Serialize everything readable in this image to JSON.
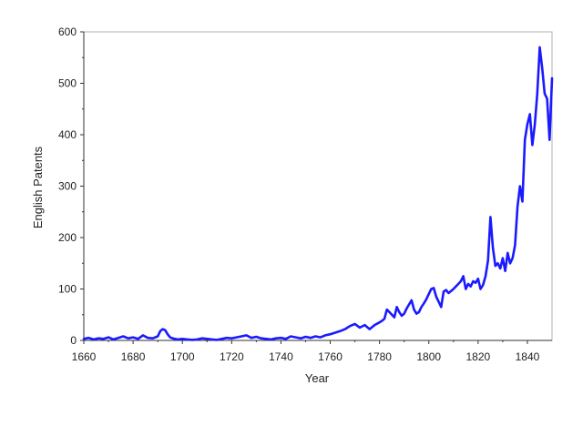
{
  "chart_data": {
    "type": "line",
    "title": "",
    "xlabel": "Year",
    "ylabel": "English Patents",
    "xlim": [
      1660,
      1850
    ],
    "ylim": [
      0,
      600
    ],
    "x_ticks": [
      1660,
      1680,
      1700,
      1720,
      1740,
      1760,
      1780,
      1800,
      1820,
      1840
    ],
    "y_ticks": [
      0,
      100,
      200,
      300,
      400,
      500,
      600
    ],
    "grid": false,
    "legend": "none",
    "series": [
      {
        "color": "#1a1aff",
        "x": [
          1660,
          1662,
          1664,
          1666,
          1668,
          1670,
          1672,
          1674,
          1676,
          1678,
          1680,
          1682,
          1684,
          1686,
          1688,
          1690,
          1691,
          1692,
          1693,
          1694,
          1695,
          1696,
          1698,
          1700,
          1702,
          1704,
          1706,
          1708,
          1710,
          1712,
          1714,
          1716,
          1718,
          1720,
          1722,
          1724,
          1726,
          1728,
          1730,
          1732,
          1734,
          1736,
          1738,
          1740,
          1742,
          1744,
          1746,
          1748,
          1750,
          1752,
          1754,
          1756,
          1758,
          1760,
          1762,
          1764,
          1766,
          1768,
          1770,
          1772,
          1774,
          1776,
          1778,
          1780,
          1781,
          1782,
          1783,
          1784,
          1785,
          1786,
          1787,
          1788,
          1789,
          1790,
          1791,
          1792,
          1793,
          1794,
          1795,
          1796,
          1797,
          1798,
          1799,
          1800,
          1801,
          1802,
          1803,
          1804,
          1805,
          1806,
          1807,
          1808,
          1809,
          1810,
          1811,
          1812,
          1813,
          1814,
          1815,
          1816,
          1817,
          1818,
          1819,
          1820,
          1821,
          1822,
          1823,
          1824,
          1825,
          1826,
          1827,
          1828,
          1829,
          1830,
          1831,
          1832,
          1833,
          1834,
          1835,
          1836,
          1837,
          1838,
          1839,
          1840,
          1841,
          1842,
          1843,
          1844,
          1845,
          1846,
          1847,
          1848,
          1849,
          1850
        ],
        "y": [
          3,
          5,
          2,
          4,
          3,
          6,
          2,
          5,
          8,
          4,
          6,
          3,
          10,
          5,
          4,
          8,
          18,
          22,
          20,
          12,
          6,
          4,
          2,
          3,
          2,
          1,
          2,
          4,
          3,
          2,
          1,
          3,
          5,
          4,
          6,
          8,
          10,
          5,
          7,
          4,
          3,
          2,
          4,
          5,
          3,
          8,
          6,
          4,
          7,
          5,
          8,
          6,
          10,
          12,
          15,
          18,
          22,
          28,
          32,
          25,
          30,
          22,
          30,
          35,
          38,
          42,
          60,
          55,
          50,
          45,
          65,
          55,
          48,
          52,
          62,
          70,
          78,
          60,
          52,
          55,
          65,
          72,
          80,
          90,
          100,
          102,
          85,
          75,
          65,
          95,
          98,
          92,
          96,
          100,
          105,
          110,
          115,
          125,
          100,
          110,
          105,
          115,
          112,
          120,
          100,
          108,
          125,
          155,
          240,
          180,
          145,
          150,
          140,
          160,
          135,
          170,
          150,
          160,
          185,
          260,
          300,
          270,
          390,
          420,
          440,
          380,
          420,
          480,
          570,
          530,
          480,
          470,
          390,
          510
        ]
      }
    ]
  }
}
